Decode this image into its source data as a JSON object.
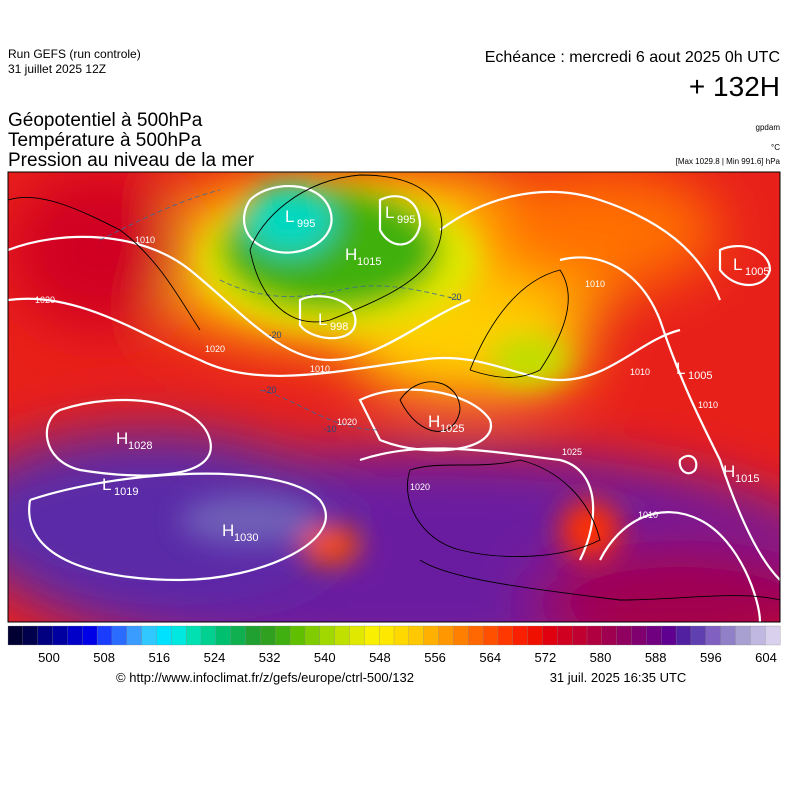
{
  "header": {
    "run": "Run GEFS (run controle)",
    "run_date": "31 juillet 2025 12Z",
    "echeance": "Echéance : mercredi 6 aout 2025 0h UTC",
    "lead": "+ 132H",
    "titles": [
      "Géopotentiel à 500hPa",
      "Température à 500hPa",
      "Pression au niveau de la mer"
    ],
    "units": [
      "gpdam",
      "°C",
      "[Max 1029.8 | Min 991.6] hPa"
    ]
  },
  "centers": [
    {
      "letter": "L",
      "value": "995"
    },
    {
      "letter": "L",
      "value": "995"
    },
    {
      "letter": "H",
      "value": "1015"
    },
    {
      "letter": "L",
      "value": "998"
    },
    {
      "letter": "L",
      "value": "1005"
    },
    {
      "letter": "L",
      "value": "1005"
    },
    {
      "letter": "H",
      "value": "1028"
    },
    {
      "letter": "L",
      "value": "1019"
    },
    {
      "letter": "H",
      "value": "1030"
    },
    {
      "letter": "H",
      "value": "1025"
    },
    {
      "letter": "H",
      "value": "1015"
    }
  ],
  "contour_labels": [
    "1010",
    "1020",
    "1020",
    "1010",
    "1020",
    "1010",
    "1010",
    "1010",
    "1025",
    "1020",
    "1010",
    "-20",
    "-20",
    "-10",
    "-20"
  ],
  "colorbar": {
    "colors": [
      "#000033",
      "#00004d",
      "#000080",
      "#0000a0",
      "#0000c8",
      "#0000e6",
      "#1a3cff",
      "#2a6cff",
      "#3a9cff",
      "#30c8ff",
      "#00e0ff",
      "#00e8e0",
      "#00e0b0",
      "#00d090",
      "#00c070",
      "#10b050",
      "#20a030",
      "#30a020",
      "#40b010",
      "#60c000",
      "#80cc00",
      "#a0d800",
      "#c0e000",
      "#e0e800",
      "#f8f000",
      "#ffe800",
      "#ffd800",
      "#ffc800",
      "#ffb000",
      "#ff9800",
      "#ff8000",
      "#ff6800",
      "#ff5000",
      "#ff3800",
      "#f82000",
      "#f01000",
      "#e00010",
      "#d00020",
      "#c00030",
      "#b00040",
      "#a00050",
      "#900060",
      "#800070",
      "#700080",
      "#600090",
      "#5020a0",
      "#6040b0",
      "#8060c0",
      "#9080c8",
      "#a8a0d0",
      "#c0b8e0",
      "#d8d0ec"
    ],
    "ticks": [
      500,
      508,
      516,
      524,
      532,
      540,
      548,
      556,
      564,
      572,
      580,
      588,
      596,
      604
    ]
  },
  "footer": {
    "url": "© http://www.infoclimat.fr/z/gefs/europe/ctrl-500/132",
    "time": "31 juil. 2025 16:35 UTC"
  }
}
